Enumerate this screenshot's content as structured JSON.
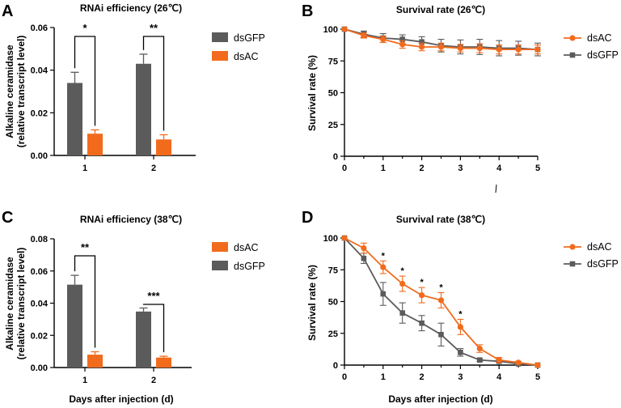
{
  "figure_labels": [
    "A",
    "B",
    "C",
    "D"
  ],
  "colors": {
    "dsGFP": "#5b5b5b",
    "dsAC": "#f26b1d",
    "axis": "#000000"
  },
  "chart_data": [
    {
      "panel": "A",
      "type": "bar",
      "title": "RNAi  efficiency (26℃)",
      "ylabel_lines": [
        "Alkaline ceramidase",
        "(relative transcript level)"
      ],
      "xlabel": "",
      "categories": [
        "1",
        "2"
      ],
      "ylim": [
        0,
        0.06
      ],
      "yticks": [
        0,
        0.02,
        0.04,
        0.06
      ],
      "ytick_labels": [
        "0.00",
        "0.02",
        "0.04",
        "0.06"
      ],
      "series": [
        {
          "name": "dsGFP",
          "color": "#5b5b5b",
          "values": [
            0.034,
            0.043
          ],
          "errors": [
            0.005,
            0.0045
          ]
        },
        {
          "name": "dsAC",
          "color": "#f26b1d",
          "values": [
            0.0102,
            0.0075
          ],
          "errors": [
            0.0018,
            0.0022
          ]
        }
      ],
      "legend_order": [
        "dsGFP",
        "dsAC"
      ],
      "significance": [
        "*",
        "**"
      ]
    },
    {
      "panel": "B",
      "type": "line",
      "title": "Survival rate (26℃)",
      "ylabel": "Survival rate (%)",
      "xlabel": "",
      "xlim": [
        0,
        5
      ],
      "ylim": [
        0,
        100
      ],
      "xticks": [
        0,
        1,
        2,
        3,
        4,
        5
      ],
      "yticks": [
        0,
        25,
        50,
        75,
        100
      ],
      "x": [
        0,
        0.5,
        1,
        1.5,
        2,
        2.5,
        3,
        3.5,
        4,
        4.5,
        5
      ],
      "series": [
        {
          "name": "dsAC",
          "color": "#f26b1d",
          "marker": "circle",
          "values": [
            100,
            95,
            92,
            88,
            86,
            86,
            85,
            85,
            84,
            84,
            84
          ],
          "errors": [
            0,
            2,
            2.5,
            3,
            3,
            3,
            3,
            3.5,
            3.5,
            3.5,
            3.5
          ]
        },
        {
          "name": "dsGFP",
          "color": "#5b5b5b",
          "marker": "square",
          "values": [
            100,
            96,
            93,
            92,
            90,
            87,
            86,
            86,
            85,
            85,
            84
          ],
          "errors": [
            0,
            2.5,
            3.5,
            3.5,
            4,
            5,
            5.5,
            6,
            6,
            5.5,
            5
          ]
        }
      ],
      "legend_order": [
        "dsAC",
        "dsGFP"
      ]
    },
    {
      "panel": "C",
      "type": "bar",
      "title": "RNAi  efficiency (38℃)",
      "ylabel_lines": [
        "Alkaline ceramidase",
        "(relative transcript level)"
      ],
      "xlabel": "Days after injection (d)",
      "categories": [
        "1",
        "2"
      ],
      "ylim": [
        0,
        0.08
      ],
      "yticks": [
        0,
        0.02,
        0.04,
        0.06,
        0.08
      ],
      "ytick_labels": [
        "0.00",
        "0.02",
        "0.04",
        "0.06",
        "0.08"
      ],
      "series": [
        {
          "name": "dsGFP",
          "color": "#5b5b5b",
          "values": [
            0.0515,
            0.0348
          ],
          "errors": [
            0.0058,
            0.0022
          ]
        },
        {
          "name": "dsAC",
          "color": "#f26b1d",
          "values": [
            0.008,
            0.0062
          ],
          "errors": [
            0.0018,
            0.0008
          ]
        }
      ],
      "legend_order": [
        "dsAC",
        "dsGFP"
      ],
      "significance": [
        "**",
        "***"
      ]
    },
    {
      "panel": "D",
      "type": "line",
      "title": "Survival rate (38℃)",
      "ylabel": "Survival rate (%)",
      "xlabel": "Days after injection (d)",
      "xlim": [
        0,
        5
      ],
      "ylim": [
        0,
        100
      ],
      "xticks": [
        0,
        1,
        2,
        3,
        4,
        5
      ],
      "yticks": [
        0,
        25,
        50,
        75,
        100
      ],
      "x": [
        0,
        0.5,
        1,
        1.5,
        2,
        2.5,
        3,
        3.5,
        4,
        4.5,
        5
      ],
      "series": [
        {
          "name": "dsAC",
          "color": "#f26b1d",
          "marker": "circle",
          "values": [
            100,
            92,
            77,
            64,
            55,
            51,
            30,
            13,
            4,
            2,
            0
          ],
          "errors": [
            0,
            4,
            5,
            6,
            6,
            6,
            6,
            3,
            2,
            1,
            0
          ]
        },
        {
          "name": "dsGFP",
          "color": "#5b5b5b",
          "marker": "square",
          "values": [
            100,
            84,
            56,
            41,
            33,
            24,
            10,
            4,
            3,
            1,
            0
          ],
          "errors": [
            0,
            4,
            9,
            8,
            6,
            9,
            3,
            1,
            1,
            1,
            0
          ]
        }
      ],
      "legend_order": [
        "dsAC",
        "dsGFP"
      ],
      "significance_x": [
        1,
        1.5,
        2,
        2.5,
        3
      ],
      "significance_mark": "*"
    }
  ]
}
